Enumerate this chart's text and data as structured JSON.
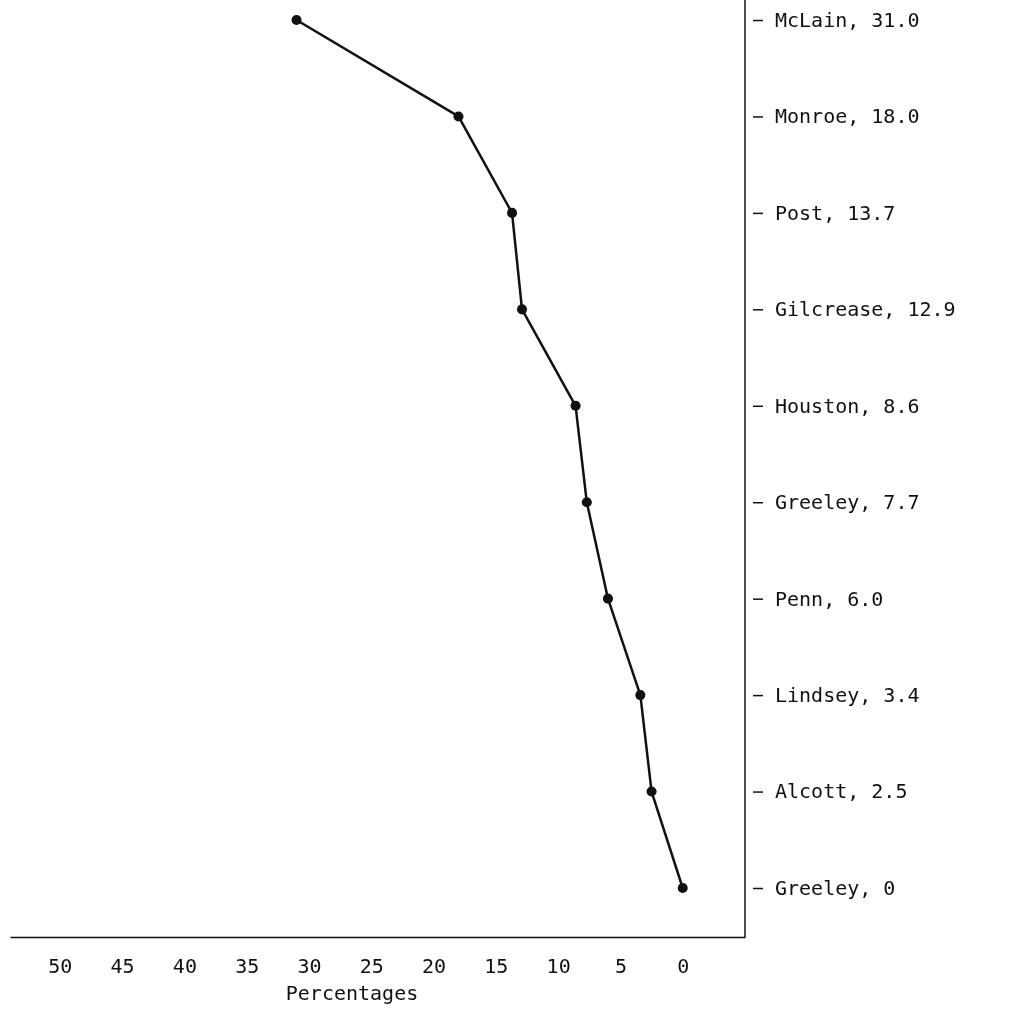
{
  "chart_data": {
    "type": "line",
    "orientation": "horizontal",
    "xlabel": "Percentages",
    "categories": [
      "McLain, 31.0",
      "Monroe, 18.0",
      "Post, 13.7",
      "Gilcrease, 12.9",
      "Houston, 8.6",
      "Greeley, 7.7",
      "Penn, 6.0",
      "Lindsey, 3.4",
      "Alcott, 2.5",
      "Greeley, 0"
    ],
    "series": [
      {
        "color": "#111111",
        "values": [
          31.0,
          18.0,
          13.7,
          12.9,
          8.6,
          7.7,
          6.0,
          3.4,
          2.5,
          0
        ]
      }
    ],
    "xlim": [
      54,
      -5
    ],
    "xticks": [
      50,
      45,
      40,
      35,
      30,
      25,
      20,
      15,
      10,
      5,
      0
    ],
    "marker": "circle",
    "line_style": "solid"
  }
}
